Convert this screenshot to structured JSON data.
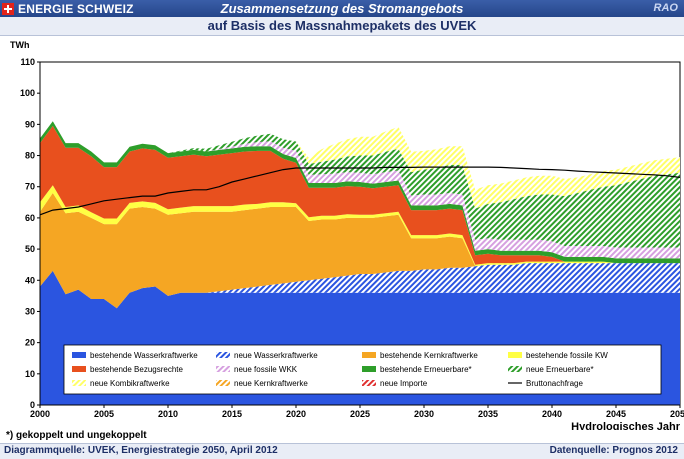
{
  "header": {
    "brand": "ENERGIE SCHWEIZ",
    "title": "Zusammensetzung des Stromangebots",
    "subtitle": "auf Basis des Massnahmepakets des UVEK",
    "tag": "RAO"
  },
  "footnote": "*) gekoppelt und ungekoppelt",
  "source_left": "Diagrammquelle: UVEK, Energiestrategie 2050, April 2012",
  "source_right": "Datenquelle: Prognos 2012",
  "colors": {
    "wasser": "#2b55e0",
    "kern": "#f5a623",
    "fossil": "#ffff44",
    "bezug": "#e8501e",
    "erneuerbar": "#2e9e2a",
    "nfossil": "#d6a0e0",
    "kombi": "#ffff66",
    "importe": "#e03030"
  },
  "chart_data": {
    "type": "area",
    "title": "",
    "xlabel": "Hydrologisches Jahr",
    "ylabel": "TWh",
    "ylim": [
      0,
      110
    ],
    "xlim": [
      2000,
      2050
    ],
    "yticks": [
      0,
      10,
      20,
      30,
      40,
      50,
      60,
      70,
      80,
      90,
      100,
      110
    ],
    "xticks": [
      2000,
      2005,
      2010,
      2015,
      2020,
      2025,
      2030,
      2035,
      2040,
      2045,
      2050
    ],
    "grid": false,
    "legend_position": "bottom-inside",
    "x": [
      2000,
      2001,
      2002,
      2003,
      2004,
      2005,
      2006,
      2007,
      2008,
      2009,
      2010,
      2011,
      2012,
      2013,
      2014,
      2015,
      2016,
      2017,
      2018,
      2019,
      2020,
      2021,
      2022,
      2023,
      2024,
      2025,
      2026,
      2027,
      2028,
      2029,
      2030,
      2031,
      2032,
      2033,
      2034,
      2035,
      2036,
      2037,
      2038,
      2039,
      2040,
      2041,
      2042,
      2043,
      2044,
      2045,
      2046,
      2047,
      2048,
      2049,
      2050
    ],
    "series": [
      {
        "name": "bestehende Wasserkraftwerke",
        "color": "#2b55e0",
        "pattern": "solid",
        "values": [
          38,
          43,
          35.5,
          37,
          34,
          34,
          31,
          36,
          37.5,
          38,
          35,
          36,
          36,
          36,
          36,
          36,
          36,
          36,
          36,
          36,
          36,
          36,
          36,
          36,
          36,
          36,
          36,
          36,
          36,
          36,
          36,
          36,
          36,
          36,
          36,
          36,
          36,
          36,
          36,
          36,
          36,
          36,
          36,
          36,
          36,
          36,
          36,
          36,
          36,
          36,
          36
        ]
      },
      {
        "name": "neue Wasserkraftwerke",
        "color": "#2b55e0",
        "pattern": "hatch",
        "values": [
          0,
          0,
          0,
          0,
          0,
          0,
          0,
          0,
          0,
          0,
          0,
          0,
          0,
          0,
          0.5,
          1,
          1.5,
          2,
          2.5,
          3,
          3.5,
          4,
          4.5,
          5,
          5.5,
          6,
          6,
          6.5,
          7,
          7,
          7.5,
          7.5,
          8,
          8,
          8.5,
          9,
          9,
          9,
          9.5,
          9.5,
          9.5,
          9.5,
          9.5,
          9.5,
          9.5,
          9.5,
          9.5,
          9.5,
          9.5,
          9.5,
          9.5
        ]
      },
      {
        "name": "bestehende Kernkraftwerke",
        "color": "#f5a623",
        "pattern": "solid",
        "values": [
          24,
          25,
          26,
          25,
          26,
          24,
          27,
          27,
          26,
          25,
          26,
          25.5,
          26,
          26,
          25.5,
          25,
          25,
          25,
          25,
          24.5,
          24,
          19,
          19,
          18.5,
          18.5,
          18,
          18,
          18,
          18,
          10.5,
          10,
          10,
          10,
          9.5,
          0,
          0,
          0,
          0,
          0,
          0,
          0,
          0,
          0,
          0,
          0,
          0,
          0,
          0,
          0,
          0,
          0
        ]
      },
      {
        "name": "bestehende fossile KW",
        "color": "#ffff44",
        "pattern": "solid",
        "values": [
          3,
          2.5,
          2,
          2,
          1.8,
          1.8,
          1.8,
          1.8,
          1.8,
          1.8,
          1.8,
          1.8,
          1.8,
          1.8,
          1.8,
          1.8,
          1.8,
          1.5,
          1.5,
          1.5,
          1.2,
          1.2,
          1.2,
          1.2,
          1.2,
          1,
          1,
          1,
          1,
          1,
          1,
          1,
          1,
          1,
          0.5,
          0.5,
          0.5,
          0.5,
          0.5,
          0.5,
          0.5,
          0.5,
          0.5,
          0.5,
          0.5,
          0,
          0,
          0,
          0,
          0,
          0
        ]
      },
      {
        "name": "bestehende Bezugsrechte",
        "color": "#e8501e",
        "pattern": "solid",
        "values": [
          19,
          19,
          19,
          18.5,
          18,
          16.5,
          16.5,
          16.5,
          17,
          17,
          16.5,
          16.5,
          16.5,
          16,
          16.5,
          17,
          17,
          17,
          16.5,
          14,
          13,
          9.5,
          9,
          9,
          9,
          9,
          8.5,
          8.5,
          8.5,
          8,
          8,
          8,
          8,
          8,
          3,
          3,
          2.5,
          2.5,
          2,
          2,
          1.5,
          0,
          0,
          0,
          0,
          0,
          0,
          0,
          0,
          0,
          0
        ]
      },
      {
        "name": "bestehende Erneuerbare*",
        "color": "#2e9e2a",
        "pattern": "solid",
        "values": [
          1.5,
          1.5,
          1.5,
          1.5,
          1.5,
          1.5,
          1.5,
          1.5,
          1.5,
          1.5,
          1.5,
          1.5,
          1.5,
          1.5,
          1.5,
          1.5,
          1.5,
          1.5,
          1.5,
          1.5,
          1.5,
          1.5,
          1.5,
          1.5,
          1.5,
          1.5,
          1.5,
          1.5,
          1.5,
          1.5,
          1.5,
          1.5,
          1.5,
          1.5,
          1.5,
          1.5,
          1.5,
          1.5,
          1.5,
          1.5,
          1.5,
          1.5,
          1.5,
          1.5,
          1.5,
          1.5,
          1.5,
          1.5,
          1.5,
          1.5,
          1.5
        ]
      },
      {
        "name": "neue fossile WKK",
        "color": "#d6a0e0",
        "pattern": "hatch",
        "values": [
          0,
          0,
          0,
          0,
          0,
          0,
          0,
          0,
          0,
          0,
          0,
          0,
          0,
          0,
          0.3,
          0.6,
          1,
          1.3,
          1.6,
          2,
          2.3,
          2.6,
          2.8,
          3,
          3,
          3,
          3,
          3.2,
          3.2,
          3.2,
          3.5,
          3.5,
          3.5,
          3.5,
          3.5,
          3.5,
          3.5,
          3.5,
          3.5,
          3.5,
          3.5,
          3.5,
          3.5,
          3.5,
          3.5,
          3.5,
          3.5,
          3.5,
          3.5,
          3.5,
          3.5
        ]
      },
      {
        "name": "neue Erneuerbare*",
        "color": "#2e9e2a",
        "pattern": "hatch",
        "values": [
          0,
          0,
          0,
          0,
          0,
          0,
          0,
          0,
          0,
          0,
          0,
          0.3,
          0.6,
          0.9,
          1.2,
          1.5,
          1.8,
          2.1,
          2.4,
          2.7,
          3,
          3.5,
          4,
          4.5,
          5,
          5.5,
          6,
          6.5,
          7,
          7.5,
          8,
          8.5,
          9,
          9.5,
          10,
          11,
          12,
          13,
          14,
          14.5,
          15,
          16,
          17,
          18,
          19,
          20,
          21,
          22,
          23,
          23.5,
          24
        ]
      },
      {
        "name": "neue Kombikraftwerke",
        "color": "#ffff66",
        "pattern": "hatch",
        "values": [
          0,
          0,
          0,
          0,
          0,
          0,
          0,
          0,
          0,
          0,
          0,
          0,
          0,
          0,
          0,
          0,
          0,
          0,
          0,
          0,
          0,
          2,
          4,
          5,
          5.5,
          6,
          6,
          6.5,
          7,
          6.5,
          6,
          6,
          6,
          6,
          6,
          6,
          6,
          6,
          6,
          6,
          6,
          5.5,
          5,
          5,
          5,
          5,
          5,
          5,
          5,
          5,
          5
        ]
      },
      {
        "name": "neue Kernkraftwerke",
        "color": "#f5a623",
        "pattern": "hatch",
        "values": [
          0,
          0,
          0,
          0,
          0,
          0,
          0,
          0,
          0,
          0,
          0,
          0,
          0,
          0,
          0,
          0,
          0,
          0,
          0,
          0,
          0,
          0,
          0,
          0,
          0,
          0,
          0,
          0,
          0,
          0,
          0,
          0,
          0,
          0,
          0,
          0,
          0,
          0,
          0,
          0,
          0,
          0,
          0,
          0,
          0,
          0,
          0,
          0,
          0,
          0,
          0
        ]
      },
      {
        "name": "neue Importe",
        "color": "#e03030",
        "pattern": "hatch",
        "values": [
          0,
          0,
          0,
          0,
          0,
          0,
          0,
          0,
          0,
          0,
          0,
          0,
          0,
          0,
          0,
          0,
          0,
          0,
          0,
          0,
          0,
          0,
          0,
          0,
          0,
          0,
          0,
          0,
          0,
          0,
          0,
          0,
          0,
          0,
          0,
          0,
          0,
          0,
          0,
          0,
          0,
          0,
          0,
          0,
          0,
          0,
          0,
          0,
          0,
          0,
          0
        ]
      },
      {
        "name": "Bruttonachfrage",
        "color": "#000000",
        "pattern": "line",
        "values": [
          61,
          62.5,
          63,
          63.5,
          64.5,
          65.5,
          66,
          66.5,
          67,
          67,
          68,
          68.5,
          69,
          69,
          70,
          71.5,
          72.5,
          73.5,
          74.5,
          75.5,
          76,
          76,
          76,
          76,
          76,
          76,
          76,
          76.2,
          76.2,
          76.2,
          76.3,
          76.3,
          76.3,
          76.3,
          76.3,
          76.3,
          76.2,
          76,
          75.8,
          75.6,
          75.5,
          75.3,
          75,
          74.8,
          74.6,
          74.4,
          74.2,
          74,
          73.8,
          73.5,
          73
        ]
      }
    ],
    "legend": [
      "bestehende Wasserkraftwerke",
      "neue Wasserkraftwerke",
      "bestehende Kernkraftwerke",
      "bestehende fossile KW",
      "bestehende Bezugsrechte",
      "neue fossile WKK",
      "bestehende Erneuerbare*",
      "neue Erneuerbare*",
      "neue Kombikraftwerke",
      "neue Kernkraftwerke",
      "neue Importe",
      "Bruttonachfrage"
    ]
  }
}
